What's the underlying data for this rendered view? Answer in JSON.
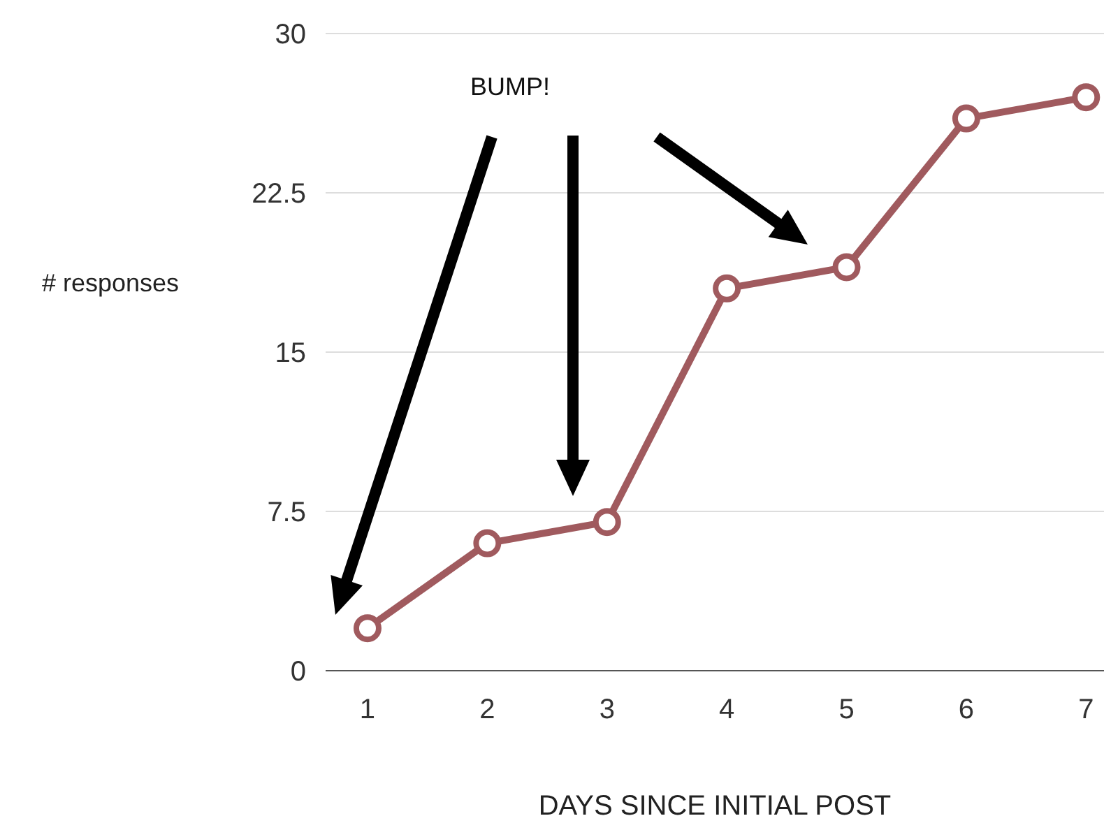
{
  "chart_data": {
    "type": "line",
    "xlabel": "DAYS SINCE INITIAL POST",
    "ylabel": "# responses",
    "annotations": [
      "BUMP!"
    ],
    "x": [
      1,
      2,
      3,
      4,
      5,
      6,
      7
    ],
    "series": [
      {
        "color": "#a05a5e",
        "values": [
          2,
          6,
          7,
          18,
          19,
          26,
          27
        ]
      }
    ],
    "xlim": [
      0.65,
      7.15
    ],
    "xticks": [
      1,
      2,
      3,
      4,
      5,
      6,
      7
    ],
    "ylim": [
      0,
      30
    ],
    "yticks": [
      0,
      7.5,
      15,
      22.5,
      30
    ],
    "grid": "y",
    "marker": "circle",
    "line_style": "solid"
  }
}
